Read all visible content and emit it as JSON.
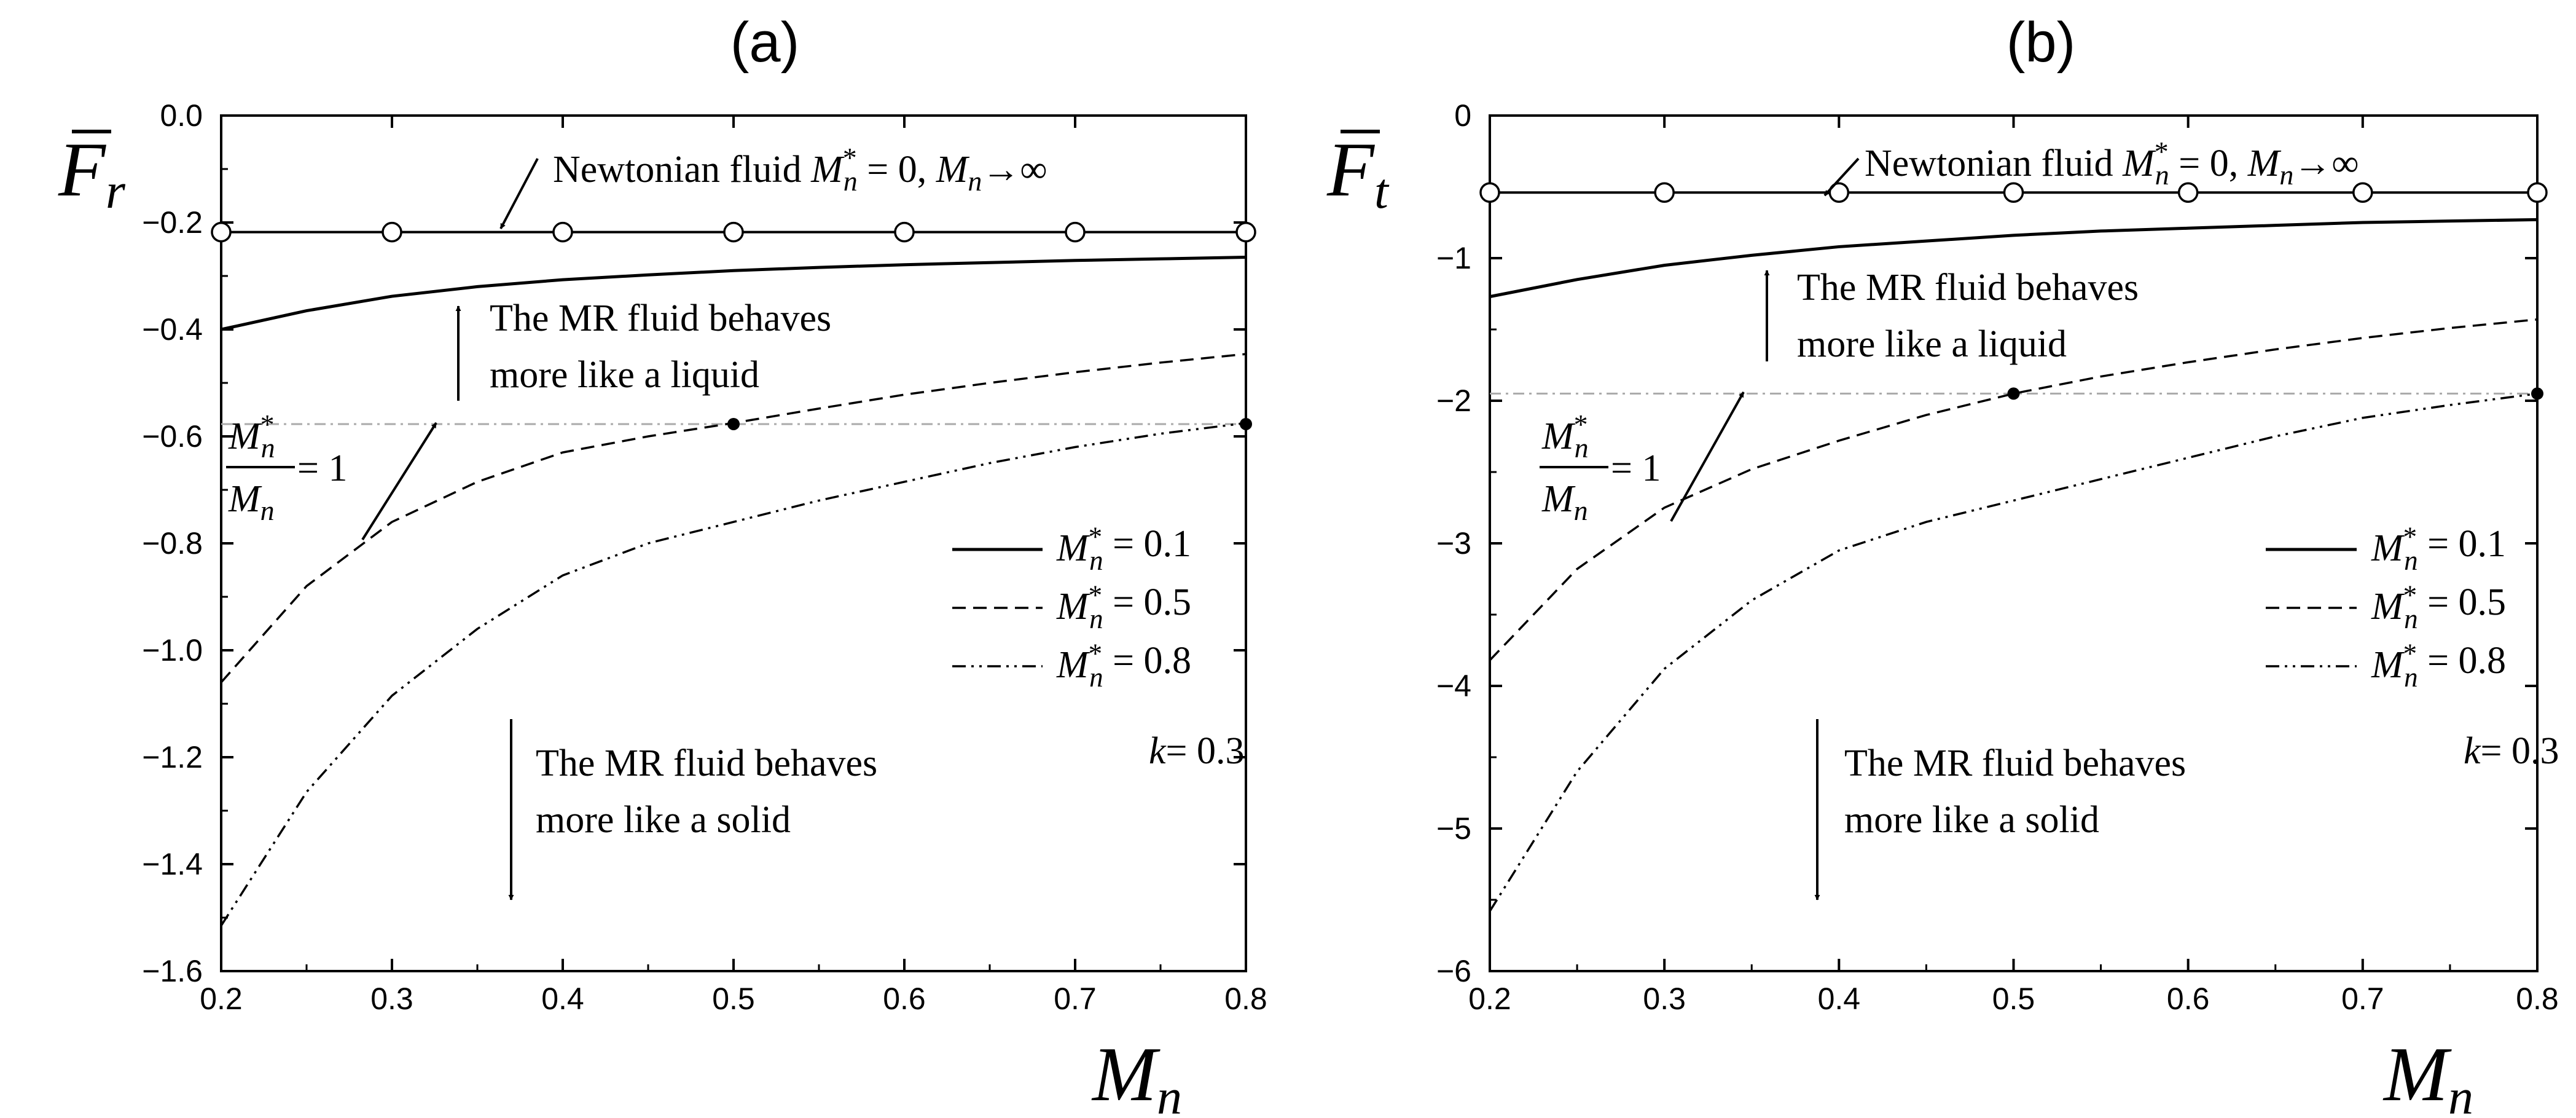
{
  "chart_data": [
    {
      "panel_label": "(a)",
      "type": "line",
      "xlabel_main": "M",
      "xlabel_sub": "n",
      "ylabel_main": "F",
      "ylabel_sub": "r",
      "xlim": [
        0.2,
        0.8
      ],
      "ylim": [
        -1.6,
        0.0
      ],
      "xticks": [
        0.2,
        0.3,
        0.4,
        0.5,
        0.6,
        0.7,
        0.8
      ],
      "xtick_labels": [
        "0.2",
        "0.3",
        "0.4",
        "0.5",
        "0.6",
        "0.7",
        "0.8"
      ],
      "yticks": [
        0.0,
        -0.2,
        -0.4,
        -0.6,
        -0.8,
        -1.0,
        -1.2,
        -1.4,
        -1.6
      ],
      "ytick_labels": [
        "0.0",
        "-0.2",
        "-0.4",
        "-0.6",
        "-0.8",
        "-1.0",
        "-1.2",
        "-1.4",
        "-1.6"
      ],
      "x": [
        0.2,
        0.25,
        0.3,
        0.35,
        0.4,
        0.45,
        0.5,
        0.55,
        0.6,
        0.65,
        0.7,
        0.75,
        0.8
      ],
      "series": [
        {
          "legend": "= 0.1",
          "style": "solid",
          "values": [
            -0.4,
            -0.365,
            -0.338,
            -0.32,
            -0.307,
            -0.298,
            -0.29,
            -0.284,
            -0.279,
            -0.275,
            -0.271,
            -0.268,
            -0.265
          ]
        },
        {
          "legend": "= 0.5",
          "style": "dashed",
          "values": [
            -1.06,
            -0.88,
            -0.76,
            -0.685,
            -0.63,
            -0.6,
            -0.575,
            -0.548,
            -0.522,
            -0.5,
            -0.48,
            -0.462,
            -0.446
          ]
        },
        {
          "legend": "= 0.8",
          "style": "dashdotdot",
          "values": [
            -1.515,
            -1.265,
            -1.085,
            -0.96,
            -0.86,
            -0.8,
            -0.76,
            -0.72,
            -0.685,
            -0.65,
            -0.62,
            -0.595,
            -0.575
          ]
        }
      ],
      "newtonian": {
        "y": -0.218,
        "marker_x": [
          0.2,
          0.3,
          0.4,
          0.5,
          0.6,
          0.7,
          0.8
        ]
      },
      "ref_line_y": -0.577,
      "ref_points": [
        {
          "x": 0.5,
          "y": -0.577
        },
        {
          "x": 0.8,
          "y": -0.577
        }
      ]
    },
    {
      "panel_label": "(b)",
      "type": "line",
      "xlabel_main": "M",
      "xlabel_sub": "n",
      "ylabel_main": "F",
      "ylabel_sub": "t",
      "xlim": [
        0.2,
        0.8
      ],
      "ylim": [
        -6,
        0
      ],
      "xticks": [
        0.2,
        0.3,
        0.4,
        0.5,
        0.6,
        0.7,
        0.8
      ],
      "xtick_labels": [
        "0.2",
        "0.3",
        "0.4",
        "0.5",
        "0.6",
        "0.7",
        "0.8"
      ],
      "yticks": [
        0,
        -1,
        -2,
        -3,
        -4,
        -5,
        -6
      ],
      "ytick_labels": [
        "0",
        "-1",
        "-2",
        "-3",
        "-4",
        "-5",
        "-6"
      ],
      "x": [
        0.2,
        0.25,
        0.3,
        0.35,
        0.4,
        0.45,
        0.5,
        0.55,
        0.6,
        0.65,
        0.7,
        0.75,
        0.8
      ],
      "series": [
        {
          "legend": "= 0.1",
          "style": "solid",
          "values": [
            -1.27,
            -1.15,
            -1.05,
            -0.98,
            -0.92,
            -0.88,
            -0.84,
            -0.81,
            -0.79,
            -0.77,
            -0.75,
            -0.74,
            -0.73
          ]
        },
        {
          "legend": "= 0.5",
          "style": "dashed",
          "values": [
            -3.82,
            -3.18,
            -2.75,
            -2.48,
            -2.28,
            -2.1,
            -1.95,
            -1.83,
            -1.73,
            -1.64,
            -1.56,
            -1.49,
            -1.43
          ]
        },
        {
          "legend": "= 0.8",
          "style": "dashdotdot",
          "values": [
            -5.58,
            -4.6,
            -3.88,
            -3.4,
            -3.05,
            -2.85,
            -2.7,
            -2.55,
            -2.4,
            -2.25,
            -2.12,
            -2.03,
            -1.95
          ]
        }
      ],
      "newtonian": {
        "y": -0.54,
        "marker_x": [
          0.2,
          0.3,
          0.4,
          0.5,
          0.6,
          0.7,
          0.8
        ]
      },
      "ref_line_y": -1.95,
      "ref_points": [
        {
          "x": 0.5,
          "y": -1.95
        },
        {
          "x": 0.8,
          "y": -1.95
        }
      ]
    }
  ],
  "annotations": {
    "newtonian_prefix": "Newtonian fluid",
    "newtonian_m": "M",
    "newtonian_sub": "n",
    "newtonian_star": "*",
    "newtonian_eq": "= 0,",
    "newtonian_m2": "M",
    "newtonian_sub2": "n",
    "newtonian_limit": "→∞",
    "liquid_line1": "The MR fluid behaves",
    "liquid_line2": "more like a liquid",
    "solid_line1": "The MR fluid behaves",
    "solid_line2": "more like a solid",
    "ratio_num": "M",
    "ratio_num_sub": "n",
    "ratio_num_star": "*",
    "ratio_den": "M",
    "ratio_den_sub": "n",
    "ratio_eq": "= 1",
    "legend_m": "M",
    "legend_sub": "n",
    "legend_star": "*",
    "k_label": "k",
    "k_value": "= 0.3"
  }
}
